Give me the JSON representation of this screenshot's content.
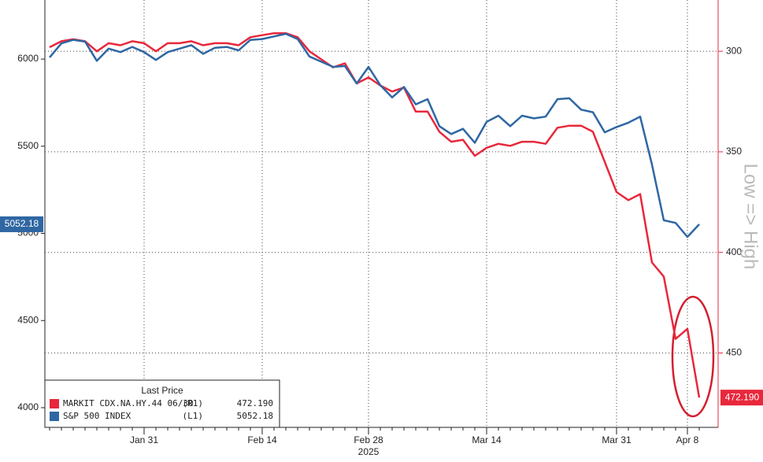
{
  "chart_data": {
    "type": "line",
    "categories": [
      null,
      null,
      null,
      null,
      null,
      null,
      null,
      null,
      "Jan 31",
      null,
      null,
      null,
      null,
      null,
      null,
      null,
      null,
      null,
      "Feb 14",
      null,
      null,
      null,
      null,
      null,
      null,
      null,
      null,
      "Feb 28",
      null,
      null,
      null,
      null,
      null,
      null,
      null,
      null,
      null,
      "Mar 14",
      null,
      null,
      null,
      null,
      null,
      null,
      null,
      null,
      null,
      null,
      "Mar 31",
      null,
      null,
      null,
      null,
      null,
      "Apr 8",
      null
    ],
    "x_sublabel": "2025",
    "legend_title": "Last Price",
    "y2_label": "Low => High",
    "series": [
      {
        "name": "MARKIT CDX.NA.HY.44 06/30",
        "tag": "(R1)",
        "color": "#e8283c",
        "axis": "y2",
        "values": [
          298,
          295,
          294,
          295,
          300,
          296,
          297,
          295,
          296,
          300,
          296,
          296,
          295,
          297,
          296,
          296,
          297,
          293,
          292,
          291,
          291,
          293,
          300,
          304,
          308,
          306,
          316,
          313,
          317,
          320,
          318,
          330,
          330,
          340,
          345,
          344,
          352,
          348,
          346,
          347,
          345,
          345,
          346,
          338,
          337,
          337,
          340,
          355,
          370,
          374,
          371,
          405,
          412,
          443,
          438,
          472.19
        ],
        "value_labels": {
          "55": "472.190"
        }
      },
      {
        "name": "S&P 500 INDEX",
        "tag": "(L1)",
        "color": "#2f67a3",
        "axis": "y",
        "values": [
          6010,
          6090,
          6110,
          6100,
          5990,
          6060,
          6040,
          6070,
          6040,
          5995,
          6040,
          6060,
          6080,
          6030,
          6065,
          6070,
          6050,
          6110,
          6115,
          6130,
          6145,
          6115,
          6015,
          5985,
          5955,
          5960,
          5860,
          5955,
          5850,
          5780,
          5840,
          5740,
          5770,
          5615,
          5570,
          5600,
          5520,
          5640,
          5675,
          5615,
          5675,
          5660,
          5670,
          5770,
          5775,
          5710,
          5695,
          5580,
          5610,
          5635,
          5670,
          5395,
          5075,
          5060,
          4980,
          5052.18
        ]
      }
    ],
    "ylim": [
      3887,
      6339
    ],
    "yticks": [
      4000,
      4500,
      5000,
      5500,
      6000
    ],
    "y2lim": [
      487,
      274.5
    ],
    "y2ticks": [
      300,
      350,
      400,
      450
    ],
    "grid": true
  }
}
